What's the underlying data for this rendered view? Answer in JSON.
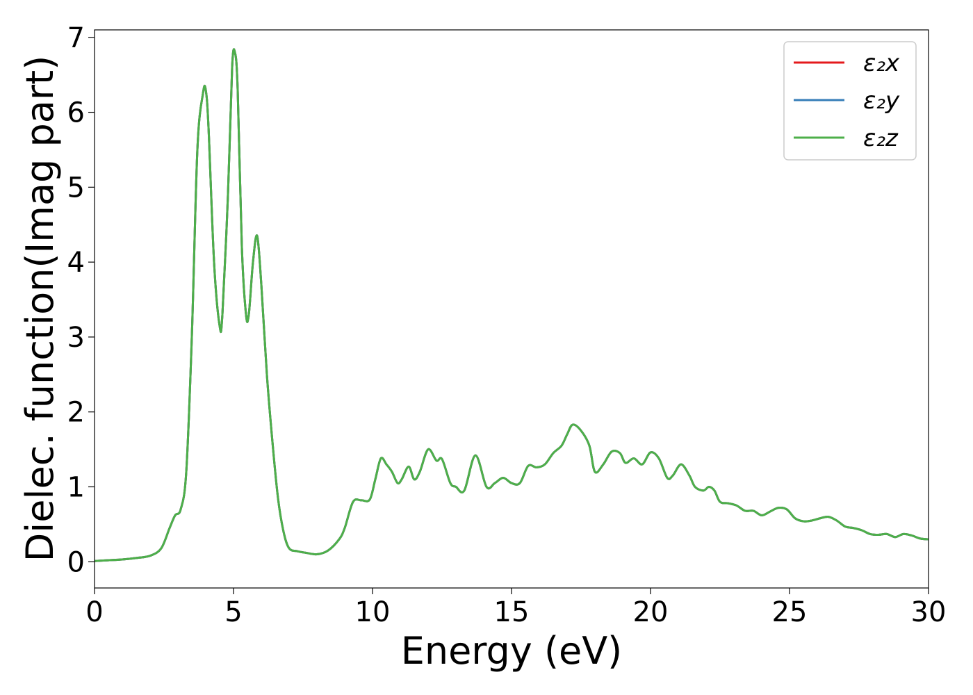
{
  "chart_data": {
    "type": "line",
    "xlabel": "Energy (eV)",
    "ylabel": "Dielec. function(Imag part)",
    "xlim": [
      0,
      30
    ],
    "ylim": [
      -0.35,
      7.1
    ],
    "xticks": [
      0,
      5,
      10,
      15,
      20,
      25,
      30
    ],
    "yticks": [
      0,
      1,
      2,
      3,
      4,
      5,
      6,
      7
    ],
    "grid": false,
    "legend_position": "top-right",
    "x": [
      0,
      0.5,
      1,
      1.5,
      2,
      2.4,
      2.7,
      2.9,
      3.1,
      3.3,
      3.5,
      3.7,
      3.9,
      4.0,
      4.1,
      4.3,
      4.5,
      4.6,
      4.8,
      4.95,
      5.05,
      5.15,
      5.3,
      5.45,
      5.55,
      5.7,
      5.85,
      6.0,
      6.2,
      6.4,
      6.6,
      6.8,
      7.0,
      7.3,
      7.6,
      8.0,
      8.4,
      8.8,
      9.0,
      9.3,
      9.6,
      9.9,
      10.1,
      10.3,
      10.5,
      10.7,
      10.9,
      11.05,
      11.3,
      11.5,
      11.7,
      12.0,
      12.3,
      12.5,
      12.8,
      13.0,
      13.3,
      13.7,
      14.1,
      14.4,
      14.7,
      15.0,
      15.3,
      15.6,
      15.9,
      16.2,
      16.5,
      16.8,
      17.0,
      17.2,
      17.5,
      17.8,
      18.0,
      18.3,
      18.6,
      18.9,
      19.1,
      19.4,
      19.7,
      20.0,
      20.3,
      20.6,
      20.8,
      21.1,
      21.4,
      21.6,
      21.9,
      22.1,
      22.3,
      22.5,
      22.8,
      23.1,
      23.4,
      23.7,
      24.0,
      24.3,
      24.6,
      24.9,
      25.2,
      25.5,
      25.8,
      26.1,
      26.4,
      26.7,
      27.0,
      27.3,
      27.6,
      27.9,
      28.2,
      28.5,
      28.8,
      29.1,
      29.4,
      29.7,
      30
    ],
    "series": [
      {
        "name": "ε₂x",
        "color": "#e41a1c",
        "y": [
          0.01,
          0.02,
          0.03,
          0.05,
          0.08,
          0.18,
          0.45,
          0.62,
          0.7,
          1.2,
          3.0,
          5.5,
          6.25,
          6.3,
          5.8,
          4.0,
          3.15,
          3.3,
          4.9,
          6.6,
          6.8,
          6.3,
          4.2,
          3.3,
          3.3,
          4.0,
          4.35,
          3.7,
          2.5,
          1.6,
          0.85,
          0.4,
          0.18,
          0.14,
          0.12,
          0.1,
          0.15,
          0.3,
          0.45,
          0.8,
          0.82,
          0.83,
          1.1,
          1.38,
          1.3,
          1.2,
          1.05,
          1.1,
          1.27,
          1.1,
          1.2,
          1.5,
          1.35,
          1.37,
          1.05,
          1.0,
          0.95,
          1.42,
          1.0,
          1.05,
          1.12,
          1.05,
          1.05,
          1.28,
          1.26,
          1.3,
          1.45,
          1.55,
          1.7,
          1.83,
          1.75,
          1.55,
          1.2,
          1.3,
          1.47,
          1.45,
          1.32,
          1.38,
          1.3,
          1.46,
          1.38,
          1.12,
          1.15,
          1.3,
          1.15,
          1.0,
          0.95,
          1.0,
          0.95,
          0.8,
          0.78,
          0.75,
          0.68,
          0.68,
          0.62,
          0.67,
          0.72,
          0.7,
          0.58,
          0.54,
          0.55,
          0.58,
          0.6,
          0.55,
          0.47,
          0.45,
          0.42,
          0.37,
          0.36,
          0.37,
          0.33,
          0.37,
          0.35,
          0.31,
          0.3
        ]
      },
      {
        "name": "ε₂y",
        "color": "#377eb8",
        "y": [
          0.01,
          0.02,
          0.03,
          0.05,
          0.08,
          0.18,
          0.45,
          0.62,
          0.7,
          1.2,
          3.0,
          5.5,
          6.25,
          6.3,
          5.8,
          4.0,
          3.15,
          3.3,
          4.9,
          6.6,
          6.8,
          6.3,
          4.2,
          3.3,
          3.3,
          4.0,
          4.35,
          3.7,
          2.5,
          1.6,
          0.85,
          0.4,
          0.18,
          0.14,
          0.12,
          0.1,
          0.15,
          0.3,
          0.45,
          0.8,
          0.82,
          0.83,
          1.1,
          1.38,
          1.3,
          1.2,
          1.05,
          1.1,
          1.27,
          1.1,
          1.2,
          1.5,
          1.35,
          1.37,
          1.05,
          1.0,
          0.95,
          1.42,
          1.0,
          1.05,
          1.12,
          1.05,
          1.05,
          1.28,
          1.26,
          1.3,
          1.45,
          1.55,
          1.7,
          1.83,
          1.75,
          1.55,
          1.2,
          1.3,
          1.47,
          1.45,
          1.32,
          1.38,
          1.3,
          1.46,
          1.38,
          1.12,
          1.15,
          1.3,
          1.15,
          1.0,
          0.95,
          1.0,
          0.95,
          0.8,
          0.78,
          0.75,
          0.68,
          0.68,
          0.62,
          0.67,
          0.72,
          0.7,
          0.58,
          0.54,
          0.55,
          0.58,
          0.6,
          0.55,
          0.47,
          0.45,
          0.42,
          0.37,
          0.36,
          0.37,
          0.33,
          0.37,
          0.35,
          0.31,
          0.3
        ]
      },
      {
        "name": "ε₂z",
        "color": "#4daf4a",
        "y": [
          0.01,
          0.02,
          0.03,
          0.05,
          0.08,
          0.18,
          0.45,
          0.62,
          0.7,
          1.2,
          3.0,
          5.5,
          6.25,
          6.3,
          5.8,
          4.0,
          3.15,
          3.3,
          4.9,
          6.6,
          6.8,
          6.3,
          4.2,
          3.3,
          3.3,
          4.0,
          4.35,
          3.7,
          2.5,
          1.6,
          0.85,
          0.4,
          0.18,
          0.14,
          0.12,
          0.1,
          0.15,
          0.3,
          0.45,
          0.8,
          0.82,
          0.83,
          1.1,
          1.38,
          1.3,
          1.2,
          1.05,
          1.1,
          1.27,
          1.1,
          1.2,
          1.5,
          1.35,
          1.37,
          1.05,
          1.0,
          0.95,
          1.42,
          1.0,
          1.05,
          1.12,
          1.05,
          1.05,
          1.28,
          1.26,
          1.3,
          1.45,
          1.55,
          1.7,
          1.83,
          1.75,
          1.55,
          1.2,
          1.3,
          1.47,
          1.45,
          1.32,
          1.38,
          1.3,
          1.46,
          1.38,
          1.12,
          1.15,
          1.3,
          1.15,
          1.0,
          0.95,
          1.0,
          0.95,
          0.8,
          0.78,
          0.75,
          0.68,
          0.68,
          0.62,
          0.67,
          0.72,
          0.7,
          0.58,
          0.54,
          0.55,
          0.58,
          0.6,
          0.55,
          0.47,
          0.45,
          0.42,
          0.37,
          0.36,
          0.37,
          0.33,
          0.37,
          0.35,
          0.31,
          0.3
        ]
      }
    ]
  }
}
